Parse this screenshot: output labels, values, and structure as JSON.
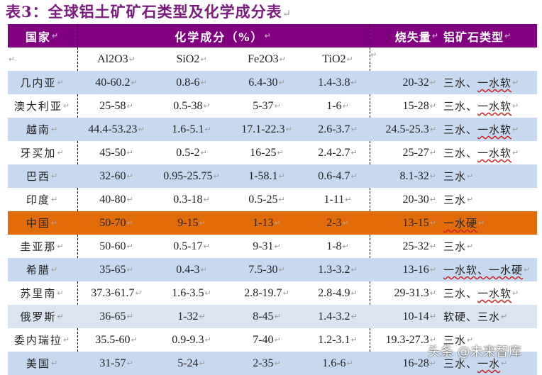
{
  "title": "表3：全球铝土矿矿石类型及化学成分表",
  "return_mark": "↵",
  "colors": {
    "title": "#7b1a7e",
    "header_bg": "#800080",
    "row_blue": "#c6d9f0",
    "row_lightblue": "#dbe5f1",
    "row_highlight": "#e26b0a",
    "row_white": "#ffffff"
  },
  "header": {
    "country": "国家",
    "chemical": "化学成分（%）",
    "loi": "烧失量",
    "ore_type": "铝矿石类型"
  },
  "subheader": {
    "al2o3": "Al2O3",
    "sio2": "SiO2",
    "fe2o3": "Fe2O3",
    "tio2": "TiO2"
  },
  "rows": [
    {
      "country": "几内亚",
      "al2o3": "40-60.2",
      "sio2": "0.8-6",
      "fe2o3": "6.4-30",
      "tio2": "1.4-3.8",
      "loi": "20-32",
      "type_a": "三水、",
      "type_b": "一水软",
      "style": "blue"
    },
    {
      "country": "澳大利亚",
      "al2o3": "25-58",
      "sio2": "0.5-38",
      "fe2o3": "5-37",
      "tio2": "1-6",
      "loi": "15-28",
      "type_a": "三水、",
      "type_b": "一水软",
      "style": "white"
    },
    {
      "country": "越南",
      "al2o3": "44.4-53.23",
      "sio2": "1.6-5.1",
      "fe2o3": "17.1-22.3",
      "tio2": "2.6-3.7",
      "loi": "24.5-25.3",
      "type_a": "三水、",
      "type_b": "一水软",
      "style": "blue"
    },
    {
      "country": "牙买加",
      "al2o3": "45-50",
      "sio2": "0.5-2",
      "fe2o3": "16-25",
      "tio2": "2.4-2.7",
      "loi": "25-27",
      "type_a": "三水、",
      "type_b": "一水软",
      "style": "white"
    },
    {
      "country": "巴西",
      "al2o3": "32-60",
      "sio2": "0.95-25.75",
      "fe2o3": "1-58.1",
      "tio2": "0.6-4.7",
      "loi": "8.1-32",
      "type_a": "三水",
      "type_b": "",
      "style": "blue"
    },
    {
      "country": "印度",
      "al2o3": "40-80",
      "sio2": "0.3-18",
      "fe2o3": "0.5-25",
      "tio2": "1-11",
      "loi": "20-30",
      "type_a": "三水",
      "type_b": "",
      "style": "white"
    },
    {
      "country": "中国",
      "al2o3": "50-70",
      "sio2": "9-15",
      "fe2o3": "1-13",
      "tio2": "2-3",
      "loi": "13-15",
      "type_a": "",
      "type_b": "一水硬",
      "style": "orange"
    },
    {
      "country": "圭亚那",
      "al2o3": "50-60",
      "sio2": "0.5-17",
      "fe2o3": "9-31",
      "tio2": "1-8",
      "loi": "25-32",
      "type_a": "三水",
      "type_b": "",
      "style": "white"
    },
    {
      "country": "希腊",
      "al2o3": "35-65",
      "sio2": "0.4-3",
      "fe2o3": "7.5-30",
      "tio2": "1.3-3.2",
      "loi": "13-16",
      "type_a": "",
      "type_b": "一水软、一水硬",
      "style": "blue"
    },
    {
      "country": "苏里南",
      "al2o3": "37.3-61.7",
      "sio2": "1.6-3.5",
      "fe2o3": "2.8-19.7",
      "tio2": "2.8-4.9",
      "loi": "29-31.3",
      "type_a": "三水、",
      "type_b": "一水软",
      "style": "white"
    },
    {
      "country": "俄罗斯",
      "al2o3": "36-65",
      "sio2": "1-32",
      "fe2o3": "8-45",
      "tio2": "1.4-3.2",
      "loi": "10-14",
      "type_a": "软硬、三水",
      "type_b": "",
      "style": "lightblue"
    },
    {
      "country": "委内瑞拉",
      "al2o3": "35.5-60",
      "sio2": "0.9-9.3",
      "fe2o3": "7-40",
      "tio2": "1.2-3.1",
      "loi": "19.3-27.3",
      "type_a": "三水",
      "type_b": "",
      "style": "white"
    },
    {
      "country": "美国",
      "al2o3": "31-57",
      "sio2": "5-24",
      "fe2o3": "2-35",
      "tio2": "1.6-6",
      "loi": "16-28",
      "type_a": "三水、",
      "type_b": "一水",
      "style": "blue"
    }
  ],
  "watermark": "头条 @未来智库"
}
